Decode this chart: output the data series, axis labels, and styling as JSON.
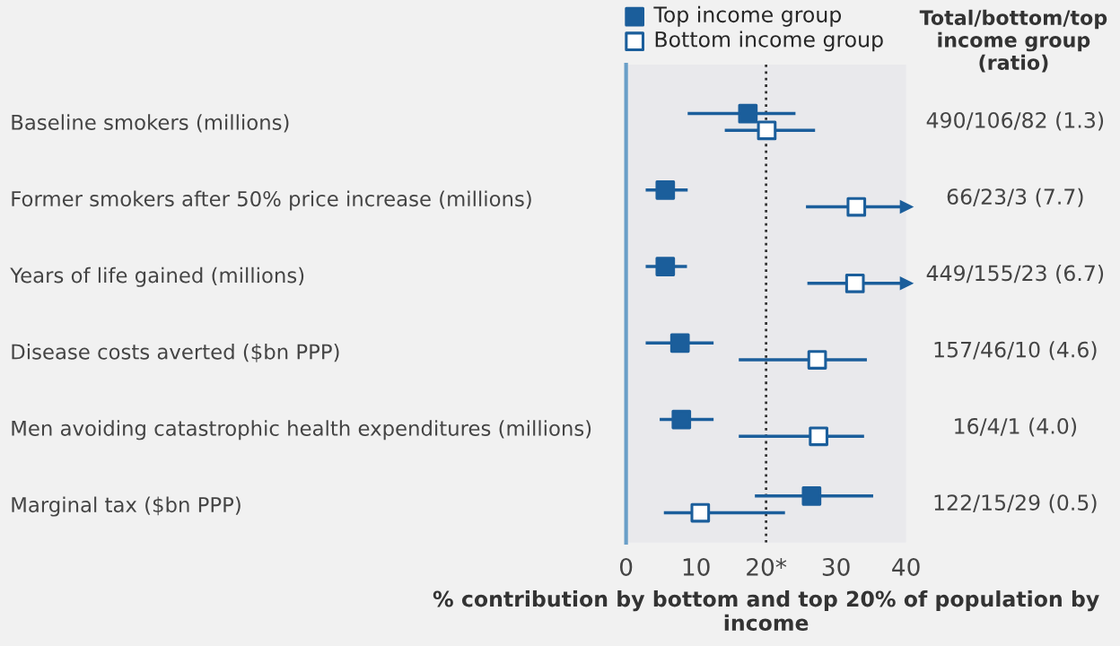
{
  "chart_data": {
    "type": "scatter",
    "orientation": "horizontal",
    "categories": [
      "Baseline smokers (millions)",
      "Former smokers after 50% price increase (millions)",
      "Years of life gained (millions)",
      "Disease costs averted ($bn PPP)",
      "Men avoiding catastrophic health expenditures (millions)",
      "Marginal tax ($bn PPP)"
    ],
    "series": [
      {
        "name": "Top income group",
        "color": "#1b5e9b",
        "values": [
          17.4,
          5.6,
          5.6,
          7.7,
          7.9,
          26.5
        ],
        "errors": [
          [
            8.8,
            24.2
          ],
          [
            2.8,
            8.8
          ],
          [
            2.8,
            8.7
          ],
          [
            2.8,
            12.5
          ],
          [
            4.8,
            12.5
          ],
          [
            18.4,
            35.3
          ]
        ]
      },
      {
        "name": "Bottom income group",
        "color": "#1b5e9b",
        "values": [
          20.1,
          32.9,
          32.7,
          27.3,
          27.5,
          10.6
        ],
        "errors": [
          [
            14.1,
            27.0
          ],
          [
            25.7,
            40
          ],
          [
            25.9,
            40
          ],
          [
            16.1,
            34.4
          ],
          [
            16.1,
            34.0
          ],
          [
            5.4,
            22.7
          ]
        ]
      }
    ],
    "xlim": [
      0,
      40
    ],
    "xticks": [
      0,
      10,
      {
        "value": 20,
        "label": "20*"
      },
      30,
      40
    ],
    "xlabel": "% contribution by bottom and top 20% of population by income",
    "ref_lines": [
      {
        "axis": "x",
        "value": 20,
        "line_style": "dotted",
        "color": "#333333"
      }
    ],
    "annotations": [
      "Total/bottom/top income group (ratio)",
      "490/106/82 (1.3)",
      "66/23/3 (7.7)",
      "449/155/23 (6.7)",
      "157/46/10 (4.6)",
      "16/4/1 (4.0)",
      "122/15/29 (0.5)"
    ],
    "marker": "square",
    "legend": "top",
    "grid": false
  }
}
